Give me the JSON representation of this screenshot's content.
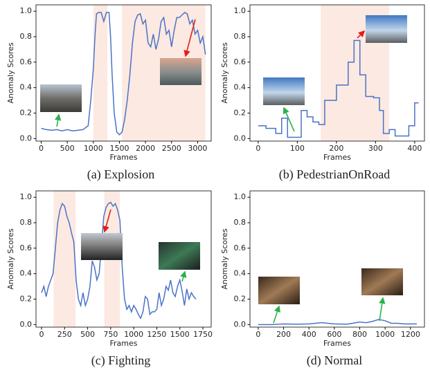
{
  "chart_data": [
    {
      "type": "line",
      "caption": "(a) Explosion",
      "xlabel": "Frames",
      "ylabel": "Anomaly Scores",
      "xlim": [
        -100,
        3260
      ],
      "ylim": [
        -0.02,
        1.05
      ],
      "xticks": [
        0,
        500,
        1000,
        1500,
        2000,
        2500,
        3000
      ],
      "yticks": [
        {
          "value": 0,
          "label": "0.0"
        },
        0.2,
        0.4,
        0.6,
        0.8,
        {
          "value": 1,
          "label": "1.0"
        }
      ],
      "anomaly_regions": [
        [
          1000,
          1270
        ],
        [
          1550,
          3150
        ]
      ],
      "region_color": "#fce9e1",
      "series": [
        {
          "color": "#4a72c8",
          "x": [
            0,
            100,
            200,
            300,
            400,
            500,
            600,
            700,
            800,
            900,
            950,
            1000,
            1030,
            1060,
            1100,
            1150,
            1200,
            1250,
            1300,
            1330,
            1360,
            1400,
            1450,
            1500,
            1550,
            1600,
            1650,
            1700,
            1750,
            1800,
            1850,
            1900,
            1950,
            2000,
            2050,
            2100,
            2150,
            2200,
            2250,
            2300,
            2350,
            2400,
            2450,
            2500,
            2550,
            2600,
            2650,
            2700,
            2750,
            2800,
            2850,
            2900,
            2950,
            3000,
            3050,
            3100,
            3150
          ],
          "values": [
            0.08,
            0.07,
            0.065,
            0.07,
            0.06,
            0.07,
            0.06,
            0.065,
            0.07,
            0.1,
            0.3,
            0.55,
            0.8,
            0.98,
            0.99,
            0.99,
            0.92,
            0.99,
            0.99,
            0.8,
            0.5,
            0.2,
            0.05,
            0.03,
            0.05,
            0.15,
            0.3,
            0.5,
            0.75,
            0.92,
            0.97,
            0.98,
            0.9,
            0.93,
            0.75,
            0.72,
            0.82,
            0.7,
            0.78,
            0.92,
            0.95,
            0.82,
            0.85,
            0.72,
            0.85,
            0.95,
            0.95,
            0.97,
            0.99,
            0.98,
            0.9,
            0.93,
            0.82,
            0.85,
            0.75,
            0.8,
            0.66
          ]
        }
      ]
    },
    {
      "type": "line",
      "caption": "(b) PedestrianOnRoad",
      "xlabel": "Frames",
      "ylabel": "Anomaly Scores",
      "xlim": [
        -21,
        425
      ],
      "ylim": [
        -0.02,
        1.05
      ],
      "xticks": [
        0,
        100,
        200,
        300,
        400
      ],
      "yticks": [
        {
          "value": 0,
          "label": "0.0"
        },
        0.2,
        0.4,
        0.6,
        0.8,
        {
          "value": 1,
          "label": "1.0"
        }
      ],
      "anomaly_regions": [
        [
          160,
          335
        ]
      ],
      "region_color": "#fce9e1",
      "series": [
        {
          "color": "#4a72c8",
          "x": [
            0,
            20,
            20,
            45,
            45,
            60,
            60,
            75,
            75,
            110,
            110,
            125,
            125,
            140,
            140,
            155,
            155,
            170,
            170,
            200,
            200,
            230,
            230,
            245,
            245,
            260,
            260,
            275,
            275,
            295,
            295,
            310,
            310,
            320,
            320,
            335,
            335,
            350,
            350,
            385,
            385,
            400,
            400,
            410
          ],
          "values": [
            0.1,
            0.1,
            0.08,
            0.08,
            0.04,
            0.04,
            0.16,
            0.16,
            0.01,
            0.01,
            0.22,
            0.22,
            0.17,
            0.17,
            0.13,
            0.13,
            0.11,
            0.11,
            0.3,
            0.3,
            0.42,
            0.42,
            0.6,
            0.6,
            0.77,
            0.77,
            0.5,
            0.5,
            0.33,
            0.33,
            0.32,
            0.32,
            0.22,
            0.22,
            0.04,
            0.04,
            0.07,
            0.07,
            0.02,
            0.02,
            0.1,
            0.1,
            0.28,
            0.28
          ]
        }
      ]
    },
    {
      "type": "line",
      "caption": "(c) Fighting",
      "xlabel": "Frames",
      "ylabel": "Anomaly Scores",
      "xlim": [
        -60,
        1840
      ],
      "ylim": [
        -0.02,
        1.05
      ],
      "xticks": [
        0,
        250,
        500,
        750,
        1000,
        1250,
        1500,
        1750
      ],
      "yticks": [
        {
          "value": 0,
          "label": "0.0"
        },
        0.2,
        0.4,
        0.6,
        0.8,
        {
          "value": 1,
          "label": "1.0"
        }
      ],
      "anomaly_regions": [
        [
          130,
          370
        ],
        [
          680,
          850
        ]
      ],
      "region_color": "#fce9e1",
      "series": [
        {
          "color": "#4a72c8",
          "x": [
            0,
            25,
            50,
            75,
            100,
            125,
            150,
            175,
            200,
            225,
            250,
            275,
            300,
            325,
            350,
            375,
            400,
            425,
            450,
            475,
            500,
            525,
            550,
            575,
            600,
            625,
            650,
            675,
            700,
            725,
            750,
            775,
            800,
            825,
            850,
            875,
            900,
            925,
            950,
            975,
            1000,
            1025,
            1050,
            1075,
            1100,
            1125,
            1150,
            1175,
            1200,
            1225,
            1250,
            1275,
            1300,
            1325,
            1350,
            1375,
            1400,
            1425,
            1450,
            1475,
            1500,
            1525,
            1550,
            1575,
            1600,
            1625,
            1650,
            1675
          ],
          "values": [
            0.25,
            0.3,
            0.22,
            0.3,
            0.35,
            0.4,
            0.6,
            0.8,
            0.9,
            0.95,
            0.93,
            0.85,
            0.8,
            0.72,
            0.65,
            0.35,
            0.2,
            0.15,
            0.25,
            0.15,
            0.2,
            0.3,
            0.5,
            0.45,
            0.35,
            0.4,
            0.62,
            0.85,
            0.92,
            0.95,
            0.96,
            0.93,
            0.95,
            0.9,
            0.82,
            0.45,
            0.2,
            0.12,
            0.15,
            0.1,
            0.15,
            0.12,
            0.08,
            0.05,
            0.1,
            0.22,
            0.2,
            0.08,
            0.1,
            0.1,
            0.12,
            0.25,
            0.15,
            0.2,
            0.3,
            0.27,
            0.35,
            0.25,
            0.22,
            0.3,
            0.35,
            0.26,
            0.15,
            0.28,
            0.2,
            0.25,
            0.22,
            0.2
          ]
        }
      ]
    },
    {
      "type": "line",
      "caption": "(d) Normal",
      "xlabel": "Frames",
      "ylabel": "Anomaly Scores",
      "xlim": [
        -65,
        1310
      ],
      "ylim": [
        -0.02,
        1.05
      ],
      "xticks": [
        0,
        200,
        400,
        600,
        800,
        1000,
        1200
      ],
      "yticks": [
        {
          "value": 0,
          "label": "0.0"
        },
        0.2,
        0.4,
        0.6,
        0.8,
        {
          "value": 1,
          "label": "1.0"
        }
      ],
      "anomaly_regions": [],
      "region_color": "#fce9e1",
      "series": [
        {
          "color": "#4a72c8",
          "x": [
            0,
            100,
            200,
            300,
            400,
            500,
            550,
            600,
            700,
            800,
            850,
            900,
            950,
            1000,
            1050,
            1100,
            1150,
            1250
          ],
          "values": [
            0,
            0,
            0.005,
            0.003,
            0.005,
            0.015,
            0.01,
            0.005,
            0.003,
            0.02,
            0.015,
            0.025,
            0.04,
            0.03,
            0.01,
            0.01,
            0.005,
            0.005
          ]
        }
      ]
    }
  ]
}
